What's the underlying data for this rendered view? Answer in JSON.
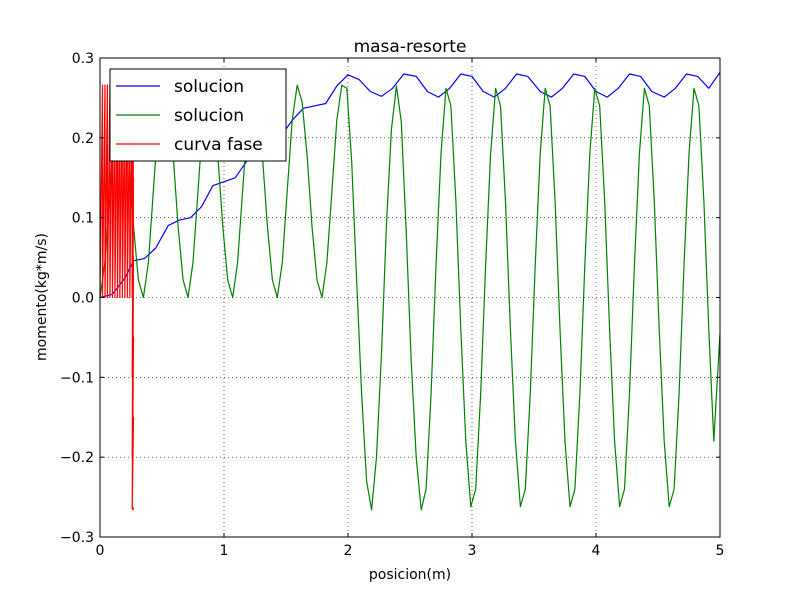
{
  "chart_data": {
    "type": "line",
    "title": "masa-resorte",
    "xlabel": "posicion(m)",
    "ylabel": "momento(kg*m/s)",
    "xlim": [
      0,
      5
    ],
    "ylim": [
      -0.3,
      0.3
    ],
    "xticks": [
      0,
      1,
      2,
      3,
      4,
      5
    ],
    "xtick_labels": [
      "0",
      "1",
      "2",
      "3",
      "4",
      "5"
    ],
    "yticks": [
      -0.3,
      -0.2,
      -0.1,
      0.0,
      0.1,
      0.2,
      0.3
    ],
    "ytick_labels": [
      "−0.3",
      "−0.2",
      "−0.1",
      "0.0",
      "0.1",
      "0.2",
      "0.3"
    ],
    "grid": true,
    "legend_position": "top-left",
    "series": [
      {
        "name": "solucion",
        "color": "#0000ff",
        "x": [
          0.0,
          0.1,
          0.2,
          0.27,
          0.36,
          0.45,
          0.55,
          0.64,
          0.73,
          0.82,
          0.91,
          1.0,
          1.09,
          1.18,
          1.27,
          1.36,
          1.45,
          1.55,
          1.64,
          1.73,
          1.82,
          1.91,
          2.0,
          2.09,
          2.18,
          2.27,
          2.36,
          2.45,
          2.55,
          2.64,
          2.73,
          2.82,
          2.91,
          3.0,
          3.09,
          3.18,
          3.27,
          3.36,
          3.45,
          3.55,
          3.64,
          3.73,
          3.82,
          3.91,
          4.0,
          4.09,
          4.18,
          4.27,
          4.36,
          4.45,
          4.55,
          4.64,
          4.73,
          4.82,
          4.91,
          5.0
        ],
        "y": [
          0.0,
          0.004,
          0.024,
          0.046,
          0.049,
          0.062,
          0.09,
          0.097,
          0.1,
          0.114,
          0.14,
          0.145,
          0.15,
          0.17,
          0.19,
          0.193,
          0.2,
          0.222,
          0.237,
          0.24,
          0.243,
          0.265,
          0.279,
          0.273,
          0.258,
          0.252,
          0.262,
          0.28,
          0.277,
          0.258,
          0.251,
          0.262,
          0.28,
          0.277,
          0.258,
          0.251,
          0.262,
          0.28,
          0.277,
          0.258,
          0.251,
          0.262,
          0.28,
          0.277,
          0.258,
          0.251,
          0.262,
          0.28,
          0.277,
          0.258,
          0.251,
          0.262,
          0.28,
          0.277,
          0.262,
          0.282
        ]
      },
      {
        "name": "solucion",
        "color": "#008000",
        "x": [
          0.0,
          0.04,
          0.08,
          0.12,
          0.16,
          0.19,
          0.23,
          0.27,
          0.31,
          0.35,
          0.39,
          0.43,
          0.47,
          0.51,
          0.55,
          0.59,
          0.63,
          0.67,
          0.71,
          0.75,
          0.79,
          0.83,
          0.87,
          0.91,
          0.95,
          0.99,
          1.03,
          1.07,
          1.11,
          1.15,
          1.19,
          1.23,
          1.27,
          1.31,
          1.35,
          1.39,
          1.43,
          1.47,
          1.51,
          1.55,
          1.59,
          1.63,
          1.67,
          1.71,
          1.75,
          1.79,
          1.83,
          1.87,
          1.91,
          1.95,
          1.99,
          2.03,
          2.07,
          2.11,
          2.15,
          2.19,
          2.23,
          2.27,
          2.31,
          2.35,
          2.39,
          2.43,
          2.47,
          2.51,
          2.55,
          2.59,
          2.63,
          2.67,
          2.71,
          2.75,
          2.79,
          2.83,
          2.87,
          2.91,
          2.95,
          2.99,
          3.03,
          3.07,
          3.11,
          3.15,
          3.19,
          3.23,
          3.27,
          3.31,
          3.35,
          3.39,
          3.43,
          3.47,
          3.51,
          3.55,
          3.59,
          3.63,
          3.67,
          3.71,
          3.75,
          3.79,
          3.83,
          3.87,
          3.91,
          3.95,
          3.99,
          4.03,
          4.07,
          4.11,
          4.15,
          4.19,
          4.23,
          4.27,
          4.31,
          4.35,
          4.39,
          4.43,
          4.47,
          4.51,
          4.55,
          4.59,
          4.63,
          4.67,
          4.71,
          4.75,
          4.79,
          4.83,
          4.87,
          4.91,
          4.95,
          5.0
        ],
        "y": [
          0.0,
          0.045,
          0.134,
          0.222,
          0.266,
          0.245,
          0.178,
          0.089,
          0.022,
          0.0,
          0.044,
          0.133,
          0.222,
          0.266,
          0.245,
          0.178,
          0.089,
          0.022,
          0.0,
          0.044,
          0.133,
          0.222,
          0.266,
          0.245,
          0.178,
          0.089,
          0.022,
          0.0,
          0.044,
          0.133,
          0.222,
          0.266,
          0.245,
          0.178,
          0.089,
          0.022,
          0.0,
          0.044,
          0.133,
          0.222,
          0.266,
          0.245,
          0.178,
          0.089,
          0.022,
          0.0,
          0.044,
          0.133,
          0.222,
          0.266,
          0.262,
          0.17,
          0.02,
          -0.12,
          -0.23,
          -0.266,
          -0.2,
          -0.07,
          0.09,
          0.21,
          0.265,
          0.22,
          0.08,
          -0.08,
          -0.2,
          -0.266,
          -0.24,
          -0.12,
          0.04,
          0.18,
          0.262,
          0.24,
          0.12,
          -0.04,
          -0.18,
          -0.262,
          -0.24,
          -0.12,
          0.04,
          0.18,
          0.262,
          0.24,
          0.12,
          -0.04,
          -0.18,
          -0.262,
          -0.24,
          -0.12,
          0.04,
          0.18,
          0.262,
          0.24,
          0.12,
          -0.04,
          -0.18,
          -0.262,
          -0.24,
          -0.12,
          0.04,
          0.18,
          0.262,
          0.24,
          0.12,
          -0.04,
          -0.18,
          -0.262,
          -0.24,
          -0.12,
          0.04,
          0.18,
          0.262,
          0.24,
          0.12,
          -0.04,
          -0.18,
          -0.262,
          -0.24,
          -0.12,
          0.04,
          0.18,
          0.262,
          0.24,
          0.12,
          -0.04,
          -0.18,
          -0.045
        ]
      },
      {
        "name": "curva fase",
        "color": "#ff0000",
        "x": [
          0.0,
          0.02,
          0.02,
          0.04,
          0.04,
          0.06,
          0.06,
          0.08,
          0.08,
          0.1,
          0.1,
          0.12,
          0.12,
          0.14,
          0.14,
          0.16,
          0.16,
          0.18,
          0.18,
          0.2,
          0.2,
          0.22,
          0.22,
          0.24,
          0.24,
          0.26,
          0.26,
          0.27,
          0.26,
          0.27,
          0.26,
          0.27,
          0.26,
          0.27,
          0.26,
          0.27,
          0.26,
          0.27
        ],
        "y": [
          0.0,
          0.266,
          0.0,
          0.266,
          0.0,
          0.266,
          0.0,
          0.266,
          0.0,
          0.266,
          0.0,
          0.266,
          0.0,
          0.266,
          0.0,
          0.266,
          0.0,
          0.266,
          0.0,
          0.266,
          0.0,
          0.266,
          0.0,
          0.266,
          0.0,
          0.266,
          0.0,
          0.22,
          -0.1,
          0.15,
          -0.2,
          0.05,
          -0.26,
          -0.05,
          -0.265,
          -0.15,
          -0.26,
          -0.266
        ]
      }
    ]
  }
}
